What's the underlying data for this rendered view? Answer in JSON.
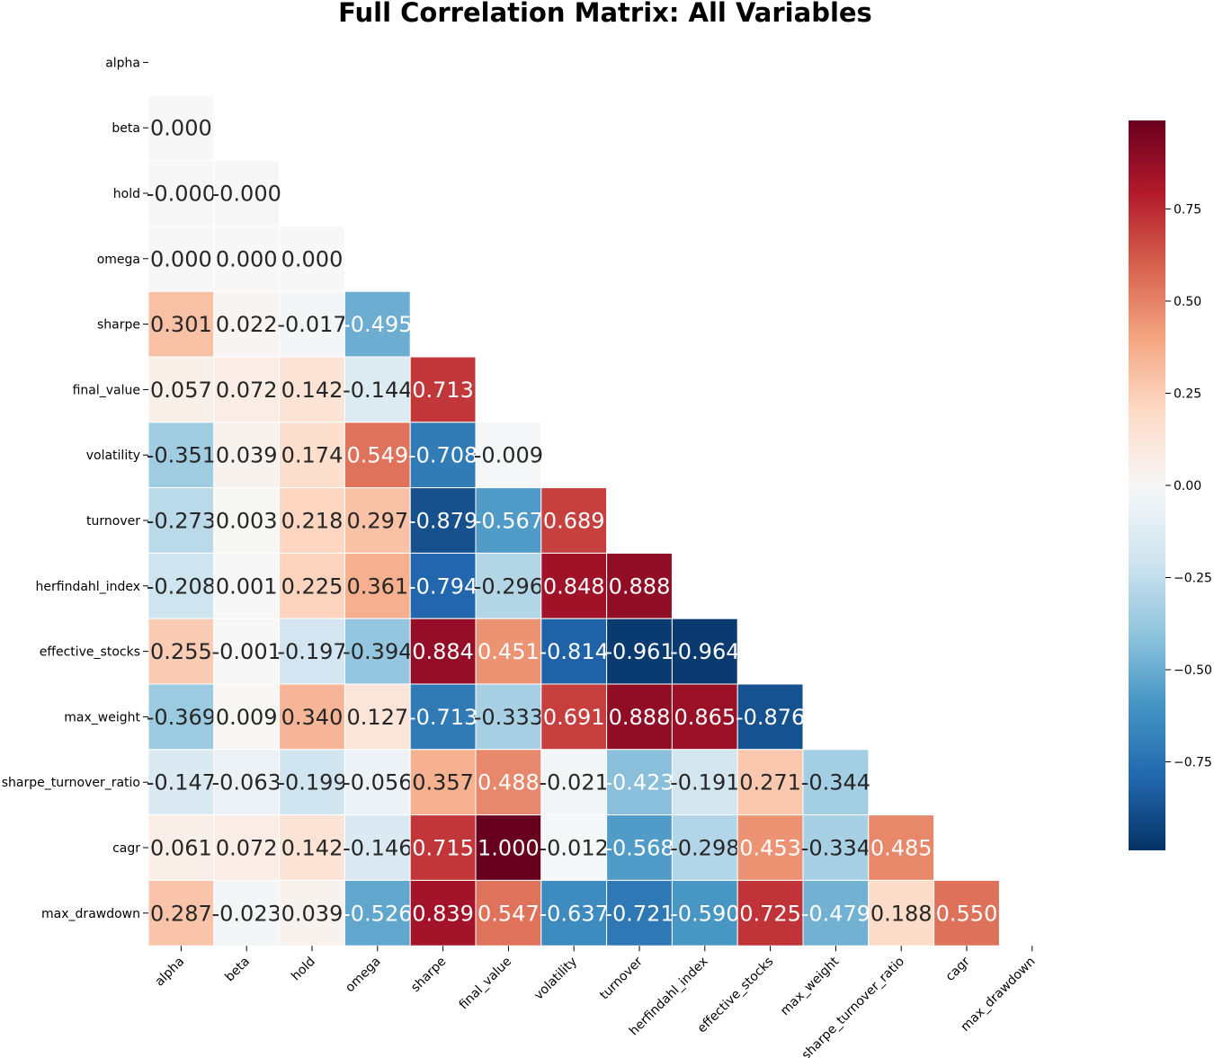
{
  "chart_data": {
    "type": "heatmap",
    "title": "Full Correlation Matrix: All Variables",
    "variables": [
      "alpha",
      "beta",
      "hold",
      "omega",
      "sharpe",
      "final_value",
      "volatility",
      "turnover",
      "herfindahl_index",
      "effective_stocks",
      "max_weight",
      "sharpe_turnover_ratio",
      "cagr",
      "max_drawdown"
    ],
    "mask": "lower-triangle (diagonal and upper triangle hidden)",
    "values": [
      [
        null,
        null,
        null,
        null,
        null,
        null,
        null,
        null,
        null,
        null,
        null,
        null,
        null,
        null
      ],
      [
        0.0,
        null,
        null,
        null,
        null,
        null,
        null,
        null,
        null,
        null,
        null,
        null,
        null,
        null
      ],
      [
        -0.0,
        -0.0,
        null,
        null,
        null,
        null,
        null,
        null,
        null,
        null,
        null,
        null,
        null,
        null
      ],
      [
        0.0,
        0.0,
        0.0,
        null,
        null,
        null,
        null,
        null,
        null,
        null,
        null,
        null,
        null,
        null
      ],
      [
        0.301,
        0.022,
        -0.017,
        -0.495,
        null,
        null,
        null,
        null,
        null,
        null,
        null,
        null,
        null,
        null
      ],
      [
        0.057,
        0.072,
        0.142,
        -0.144,
        0.713,
        null,
        null,
        null,
        null,
        null,
        null,
        null,
        null,
        null
      ],
      [
        -0.351,
        0.039,
        0.174,
        0.549,
        -0.708,
        -0.009,
        null,
        null,
        null,
        null,
        null,
        null,
        null,
        null
      ],
      [
        -0.273,
        0.003,
        0.218,
        0.297,
        -0.879,
        -0.567,
        0.689,
        null,
        null,
        null,
        null,
        null,
        null,
        null
      ],
      [
        -0.208,
        0.001,
        0.225,
        0.361,
        -0.794,
        -0.296,
        0.848,
        0.888,
        null,
        null,
        null,
        null,
        null,
        null
      ],
      [
        0.255,
        -0.001,
        -0.197,
        -0.394,
        0.884,
        0.451,
        -0.814,
        -0.961,
        -0.964,
        null,
        null,
        null,
        null,
        null
      ],
      [
        -0.369,
        0.009,
        0.34,
        0.127,
        -0.713,
        -0.333,
        0.691,
        0.888,
        0.865,
        -0.876,
        null,
        null,
        null,
        null
      ],
      [
        -0.147,
        -0.063,
        -0.199,
        -0.056,
        0.357,
        0.488,
        -0.021,
        -0.423,
        -0.191,
        0.271,
        -0.344,
        null,
        null,
        null
      ],
      [
        0.061,
        0.072,
        0.142,
        -0.146,
        0.715,
        1.0,
        -0.012,
        -0.568,
        -0.298,
        0.453,
        -0.334,
        0.485,
        null,
        null
      ],
      [
        0.287,
        -0.023,
        0.039,
        -0.526,
        0.839,
        0.547,
        -0.637,
        -0.721,
        -0.59,
        0.725,
        -0.479,
        0.188,
        0.55,
        null
      ]
    ],
    "cell_labels": [
      [
        null,
        null,
        null,
        null,
        null,
        null,
        null,
        null,
        null,
        null,
        null,
        null,
        null,
        null
      ],
      [
        "0.000",
        null,
        null,
        null,
        null,
        null,
        null,
        null,
        null,
        null,
        null,
        null,
        null,
        null
      ],
      [
        "-0.000",
        "-0.000",
        null,
        null,
        null,
        null,
        null,
        null,
        null,
        null,
        null,
        null,
        null,
        null
      ],
      [
        "0.000",
        "0.000",
        "0.000",
        null,
        null,
        null,
        null,
        null,
        null,
        null,
        null,
        null,
        null,
        null
      ],
      [
        "0.301",
        "0.022",
        "-0.017",
        "-0.495",
        null,
        null,
        null,
        null,
        null,
        null,
        null,
        null,
        null,
        null
      ],
      [
        "0.057",
        "0.072",
        "0.142",
        "-0.144",
        "0.713",
        null,
        null,
        null,
        null,
        null,
        null,
        null,
        null,
        null
      ],
      [
        "-0.351",
        "0.039",
        "0.174",
        "0.549",
        "-0.708",
        "-0.009",
        null,
        null,
        null,
        null,
        null,
        null,
        null,
        null
      ],
      [
        "-0.273",
        "0.003",
        "0.218",
        "0.297",
        "-0.879",
        "-0.567",
        "0.689",
        null,
        null,
        null,
        null,
        null,
        null,
        null
      ],
      [
        "-0.208",
        "0.001",
        "0.225",
        "0.361",
        "-0.794",
        "-0.296",
        "0.848",
        "0.888",
        null,
        null,
        null,
        null,
        null,
        null
      ],
      [
        "0.255",
        "-0.001",
        "-0.197",
        "-0.394",
        "0.884",
        "0.451",
        "-0.814",
        "-0.961",
        "-0.964",
        null,
        null,
        null,
        null,
        null
      ],
      [
        "-0.369",
        "0.009",
        "0.340",
        "0.127",
        "-0.713",
        "-0.333",
        "0.691",
        "0.888",
        "0.865",
        "-0.876",
        null,
        null,
        null,
        null
      ],
      [
        "-0.147",
        "-0.063",
        "-0.199",
        "-0.056",
        "0.357",
        "0.488",
        "-0.021",
        "-0.423",
        "-0.191",
        "0.271",
        "-0.344",
        null,
        null,
        null
      ],
      [
        "0.061",
        "0.072",
        "0.142",
        "-0.146",
        "0.715",
        "1.000",
        "-0.012",
        "-0.568",
        "-0.298",
        "0.453",
        "-0.334",
        "0.485",
        null,
        null
      ],
      [
        "0.287",
        "-0.023",
        "0.039",
        "-0.526",
        "0.839",
        "0.547",
        "-0.637",
        "-0.721",
        "-0.590",
        "0.725",
        "-0.479",
        "0.188",
        "0.550",
        null
      ]
    ],
    "colormap": "RdBu_r",
    "colormap_stops": [
      "#053061",
      "#2166ac",
      "#4393c3",
      "#92c5de",
      "#d1e5f0",
      "#f7f7f7",
      "#fddbc7",
      "#f4a582",
      "#d6604d",
      "#b2182b",
      "#67001f"
    ],
    "vmin": -1.0,
    "vmax": 1.0,
    "colorbar": {
      "range": [
        -0.99,
        0.99
      ],
      "ticks": [
        0.75,
        0.5,
        0.25,
        0.0,
        -0.25,
        -0.5,
        -0.75
      ],
      "tick_labels": [
        "0.75",
        "0.50",
        "0.25",
        "0.00",
        "−0.25",
        "−0.50",
        "−0.75"
      ],
      "position": "right"
    },
    "cell_border_color": "#ffffff",
    "text_color_dark": "#262626",
    "text_color_light": "#ffffff"
  }
}
